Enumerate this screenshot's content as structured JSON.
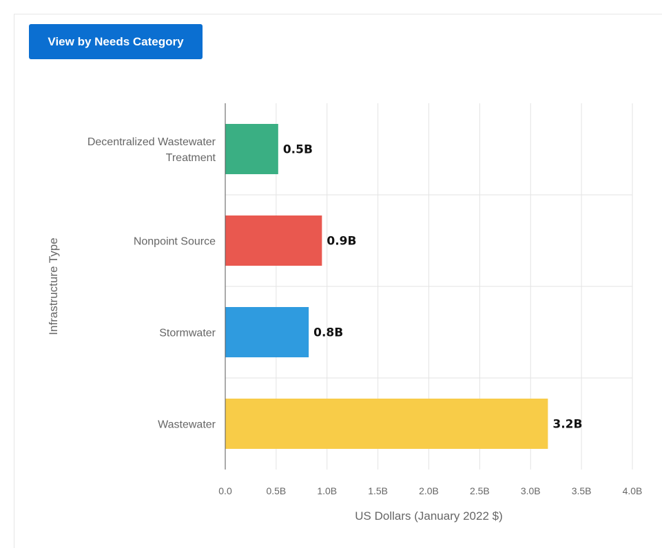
{
  "toolbar": {
    "view_button_label": "View by Needs Category",
    "button_color": "#0b6fd1"
  },
  "chart_data": {
    "type": "bar",
    "orientation": "horizontal",
    "categories": [
      [
        "Decentralized Wastewater",
        "Treatment"
      ],
      [
        "Nonpoint Source"
      ],
      [
        "Stormwater"
      ],
      [
        "Wastewater"
      ]
    ],
    "values": [
      0.52,
      0.95,
      0.82,
      3.17
    ],
    "data_labels": [
      "0.5B",
      "0.9B",
      "0.8B",
      "3.2B"
    ],
    "colors": [
      "#3aaf83",
      "#e9584f",
      "#2f9bdf",
      "#f8cc48"
    ],
    "xlabel": "US Dollars (January 2022 $)",
    "ylabel": "Infrastructure Type",
    "xlim": [
      0,
      4
    ],
    "xticks": [
      0,
      0.5,
      1,
      1.5,
      2,
      2.5,
      3,
      3.5,
      4
    ],
    "xtick_labels": [
      "0.0",
      "0.5B",
      "1.0B",
      "1.5B",
      "2.0B",
      "2.5B",
      "3.0B",
      "3.5B",
      "4.0B"
    ],
    "grid": true
  }
}
